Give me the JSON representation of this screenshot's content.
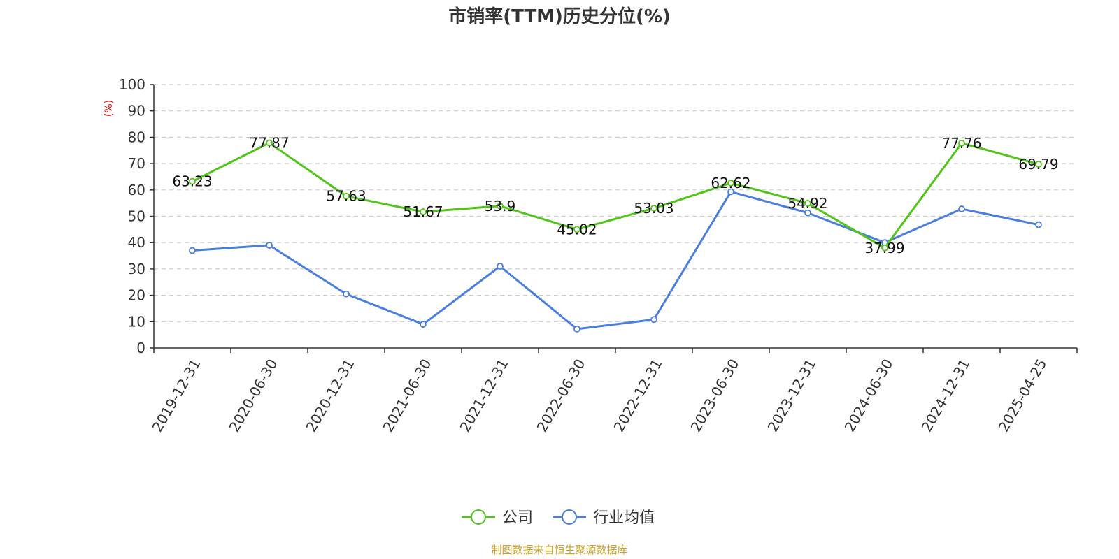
{
  "chart_data": {
    "type": "line",
    "title": "市销率(TTM)历史分位(%)",
    "ylabel": "(%)",
    "xlabel": "",
    "ylim": [
      0,
      100
    ],
    "yticks": [
      0,
      10,
      20,
      30,
      40,
      50,
      60,
      70,
      80,
      90,
      100
    ],
    "grid": true,
    "legend_position": "bottom-center",
    "categories": [
      "2019-12-31",
      "2020-06-30",
      "2020-12-31",
      "2021-06-30",
      "2021-12-31",
      "2022-06-30",
      "2022-12-31",
      "2023-06-30",
      "2023-12-31",
      "2024-06-30",
      "2024-12-31",
      "2025-04-25"
    ],
    "series": [
      {
        "name": "公司",
        "color": "#52c41a",
        "values": [
          63.23,
          77.87,
          57.63,
          51.67,
          53.9,
          45.02,
          53.03,
          62.62,
          54.92,
          37.99,
          77.76,
          69.79
        ],
        "data_labels": [
          "63.23",
          "77.87",
          "57.63",
          "51.67",
          "53.9",
          "45.02",
          "53.03",
          "62.62",
          "54.92",
          "37.99",
          "77.76",
          "69.79"
        ]
      },
      {
        "name": "行业均值",
        "color": "#4a7fdd",
        "values": [
          37,
          39,
          20.5,
          9,
          31,
          7.2,
          10.8,
          59.3,
          51.3,
          40,
          52.8,
          46.8
        ]
      }
    ]
  },
  "source_text": "制图数据来自恒生聚源数据库"
}
